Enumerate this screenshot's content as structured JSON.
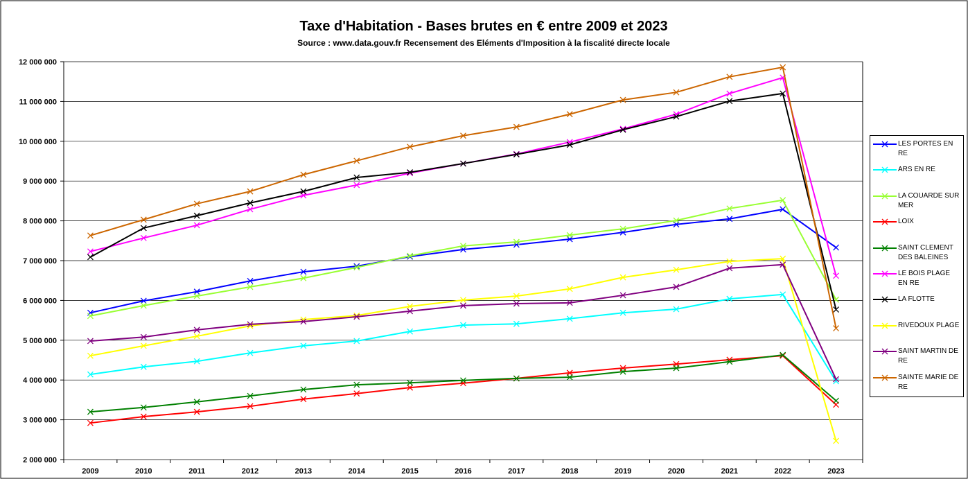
{
  "chart_data": {
    "type": "line",
    "title": "Taxe d'Habitation - Bases brutes en € entre 2009 et 2023",
    "subtitle": "Source : www.data.gouv.fr Recensement des Eléments d'Imposition à la fiscalité directe locale",
    "categories": [
      "2009",
      "2010",
      "2011",
      "2012",
      "2013",
      "2014",
      "2015",
      "2016",
      "2017",
      "2018",
      "2019",
      "2020",
      "2021",
      "2022",
      "2023"
    ],
    "ylim": [
      2000000,
      12000000
    ],
    "yticks": [
      {
        "value": 2000000,
        "label": "2 000 000"
      },
      {
        "value": 3000000,
        "label": "3 000 000"
      },
      {
        "value": 4000000,
        "label": "4 000 000"
      },
      {
        "value": 5000000,
        "label": "5 000 000"
      },
      {
        "value": 6000000,
        "label": "6 000 000"
      },
      {
        "value": 7000000,
        "label": "7 000 000"
      },
      {
        "value": 8000000,
        "label": "8 000 000"
      },
      {
        "value": 9000000,
        "label": "9 000 000"
      },
      {
        "value": 10000000,
        "label": "10 000 000"
      },
      {
        "value": 11000000,
        "label": "11 000 000"
      },
      {
        "value": 12000000,
        "label": "12 000 000"
      }
    ],
    "grid": true,
    "legend": "right",
    "series": [
      {
        "name": "LES PORTES EN RE",
        "color": "#0000ff",
        "values": [
          5690000,
          5990000,
          6220000,
          6490000,
          6720000,
          6860000,
          7100000,
          7280000,
          7400000,
          7540000,
          7710000,
          7910000,
          8050000,
          8290000,
          7330000
        ]
      },
      {
        "name": "ARS EN RE",
        "color": "#00ffff",
        "values": [
          4140000,
          4330000,
          4470000,
          4680000,
          4860000,
          4980000,
          5220000,
          5380000,
          5410000,
          5540000,
          5690000,
          5780000,
          6040000,
          6150000,
          3970000
        ]
      },
      {
        "name": "LA COUARDE SUR MER",
        "color": "#99ff33",
        "values": [
          5610000,
          5870000,
          6110000,
          6340000,
          6560000,
          6830000,
          7120000,
          7370000,
          7470000,
          7640000,
          7800000,
          8010000,
          8310000,
          8520000,
          6020000
        ]
      },
      {
        "name": "LOIX",
        "color": "#ff0000",
        "values": [
          2920000,
          3080000,
          3200000,
          3340000,
          3520000,
          3660000,
          3810000,
          3920000,
          4040000,
          4180000,
          4300000,
          4400000,
          4510000,
          4610000,
          3380000
        ]
      },
      {
        "name": "SAINT CLEMENT DES BALEINES",
        "color": "#008000",
        "values": [
          3200000,
          3310000,
          3450000,
          3600000,
          3760000,
          3880000,
          3930000,
          3990000,
          4040000,
          4070000,
          4210000,
          4300000,
          4460000,
          4630000,
          3480000
        ]
      },
      {
        "name": "LE BOIS PLAGE EN RE",
        "color": "#ff00ff",
        "values": [
          7230000,
          7570000,
          7890000,
          8290000,
          8640000,
          8900000,
          9200000,
          9440000,
          9680000,
          9980000,
          10310000,
          10680000,
          11200000,
          11600000,
          6620000
        ]
      },
      {
        "name": "LA FLOTTE",
        "color": "#000000",
        "values": [
          7090000,
          7820000,
          8130000,
          8450000,
          8740000,
          9090000,
          9220000,
          9440000,
          9670000,
          9910000,
          10290000,
          10620000,
          11010000,
          11200000,
          5770000
        ]
      },
      {
        "name": "RIVEDOUX PLAGE",
        "color": "#ffff00",
        "values": [
          4610000,
          4860000,
          5100000,
          5360000,
          5520000,
          5620000,
          5850000,
          6010000,
          6110000,
          6290000,
          6580000,
          6770000,
          6980000,
          7050000,
          2470000
        ]
      },
      {
        "name": "SAINT MARTIN DE RE",
        "color": "#800080",
        "values": [
          4980000,
          5080000,
          5260000,
          5400000,
          5470000,
          5590000,
          5730000,
          5870000,
          5920000,
          5940000,
          6130000,
          6340000,
          6810000,
          6900000,
          4020000
        ]
      },
      {
        "name": "SAINTE MARIE DE RE",
        "color": "#cc6600",
        "values": [
          7630000,
          8030000,
          8430000,
          8740000,
          9160000,
          9510000,
          9860000,
          10140000,
          10360000,
          10680000,
          11040000,
          11230000,
          11620000,
          11860000,
          5300000
        ]
      }
    ]
  }
}
